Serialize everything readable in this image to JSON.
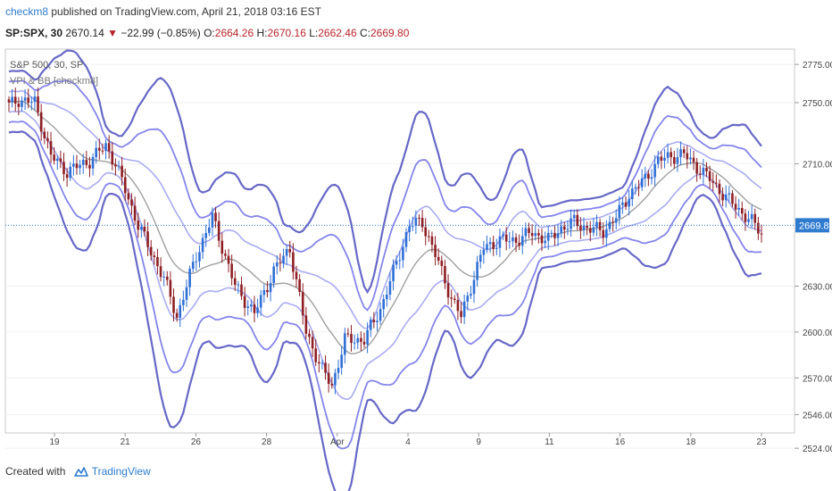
{
  "header": {
    "author": "checkm8",
    "published_text": " published on TradingView.com, April 21, 2018 03:16 EST"
  },
  "quote": {
    "symbol": "SP:SPX, 30",
    "last": "2670.14",
    "change": "−22.99 (−0.85%)",
    "open_label": "O:",
    "open": "2664.26",
    "high_label": "H:",
    "high": "2670.16",
    "low_label": "L:",
    "low": "2662.46",
    "close_label": "C:",
    "close": "2669.80"
  },
  "footer": {
    "created_with": "Created with",
    "brand": "TradingView",
    "logo_icon": "tradingview-logo-icon"
  },
  "colors": {
    "up": "#2f6fd6",
    "down": "#8e1f24",
    "band_inner": "#9b9cf0",
    "band_mid": "#6f70e8",
    "band_outer": "#4c4dbd",
    "basis": "#8f8f8f",
    "price_line": "#2e7bcf"
  },
  "chart_data": {
    "type": "candlestick",
    "legend_lines": [
      "S&P 500, 30, SP",
      "VPI & BB [checkm8]"
    ],
    "ylim": [
      2534,
      2785
    ],
    "y_ticks": [
      "2775.00",
      "2750.00",
      "2710.00",
      "2630.00",
      "2600.00",
      "2570.00",
      "2546.00",
      "2524.00"
    ],
    "x_ticks": [
      "19",
      "21",
      "26",
      "28",
      "Apr",
      "4",
      "9",
      "11",
      "16",
      "18",
      "23"
    ],
    "last_price": "2669.80",
    "anchors": [
      [
        0,
        2748
      ],
      [
        3,
        2752
      ],
      [
        8,
        2750
      ],
      [
        13,
        2715
      ],
      [
        18,
        2705
      ],
      [
        25,
        2712
      ],
      [
        30,
        2722
      ],
      [
        33,
        2710
      ],
      [
        40,
        2670
      ],
      [
        48,
        2635
      ],
      [
        52,
        2610
      ],
      [
        58,
        2650
      ],
      [
        63,
        2675
      ],
      [
        70,
        2630
      ],
      [
        76,
        2612
      ],
      [
        82,
        2640
      ],
      [
        87,
        2655
      ],
      [
        92,
        2600
      ],
      [
        97,
        2575
      ],
      [
        100,
        2565
      ],
      [
        104,
        2595
      ],
      [
        110,
        2595
      ],
      [
        115,
        2615
      ],
      [
        120,
        2645
      ],
      [
        124,
        2670
      ],
      [
        128,
        2672
      ],
      [
        133,
        2645
      ],
      [
        137,
        2622
      ],
      [
        140,
        2610
      ],
      [
        143,
        2630
      ],
      [
        147,
        2655
      ],
      [
        152,
        2660
      ],
      [
        157,
        2660
      ],
      [
        162,
        2665
      ],
      [
        167,
        2660
      ],
      [
        171,
        2668
      ],
      [
        175,
        2672
      ],
      [
        179,
        2668
      ],
      [
        184,
        2666
      ],
      [
        188,
        2675
      ],
      [
        192,
        2690
      ],
      [
        197,
        2700
      ],
      [
        201,
        2712
      ],
      [
        205,
        2715
      ],
      [
        209,
        2716
      ],
      [
        213,
        2708
      ],
      [
        217,
        2700
      ],
      [
        222,
        2688
      ],
      [
        226,
        2680
      ],
      [
        230,
        2672
      ],
      [
        233,
        2665
      ]
    ]
  }
}
